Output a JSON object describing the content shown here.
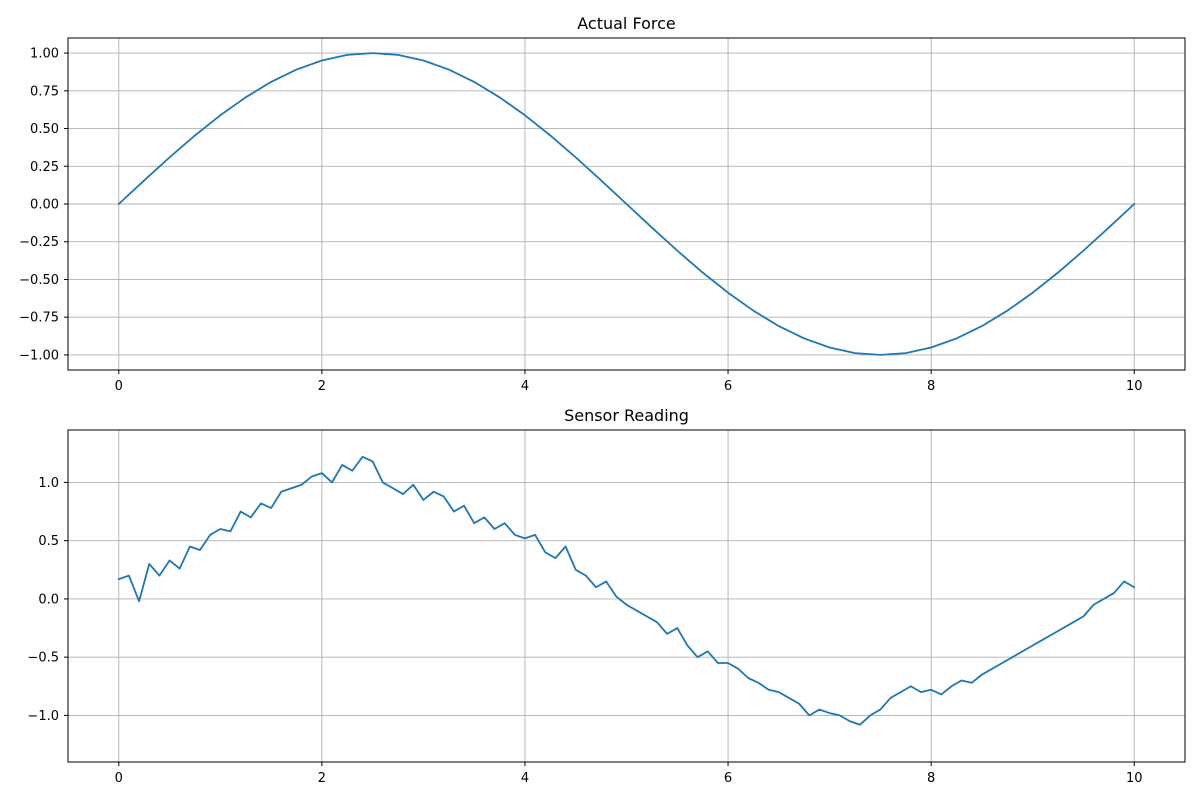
{
  "chart_data": [
    {
      "type": "line",
      "title": "Actual Force",
      "xlabel": "",
      "ylabel": "",
      "xlim": [
        -0.5,
        10.5
      ],
      "ylim": [
        -1.1,
        1.1
      ],
      "grid": true,
      "x_ticks": [
        0,
        2,
        4,
        6,
        8,
        10
      ],
      "x_tick_labels": [
        "0",
        "2",
        "4",
        "6",
        "8",
        "10"
      ],
      "y_ticks": [
        1.0,
        0.75,
        0.5,
        0.25,
        0.0,
        -0.25,
        -0.5,
        -0.75,
        -1.0
      ],
      "y_tick_labels": [
        "1.00",
        "0.75",
        "0.50",
        "0.25",
        "0.00",
        "−0.25",
        "−0.50",
        "−0.75",
        "−1.00"
      ],
      "color": "#1f77b4",
      "series": [
        {
          "x": [
            0,
            0.25,
            0.5,
            0.75,
            1,
            1.25,
            1.5,
            1.75,
            2,
            2.25,
            2.5,
            2.75,
            3,
            3.25,
            3.5,
            3.75,
            4,
            4.25,
            4.5,
            4.75,
            5,
            5.25,
            5.5,
            5.75,
            6,
            6.25,
            6.5,
            6.75,
            7,
            7.25,
            7.5,
            7.75,
            8,
            8.25,
            8.5,
            8.75,
            9,
            9.25,
            9.5,
            9.75,
            10
          ],
          "y": [
            0,
            0.156,
            0.309,
            0.454,
            0.588,
            0.707,
            0.809,
            0.891,
            0.951,
            0.988,
            1.0,
            0.988,
            0.951,
            0.891,
            0.809,
            0.707,
            0.588,
            0.454,
            0.309,
            0.156,
            0,
            -0.156,
            -0.309,
            -0.454,
            -0.588,
            -0.707,
            -0.809,
            -0.891,
            -0.951,
            -0.988,
            -1.0,
            -0.988,
            -0.951,
            -0.891,
            -0.809,
            -0.707,
            -0.588,
            -0.454,
            -0.309,
            -0.156,
            0
          ]
        }
      ]
    },
    {
      "type": "line",
      "title": "Sensor Reading",
      "xlabel": "",
      "ylabel": "",
      "xlim": [
        -0.5,
        10.5
      ],
      "ylim": [
        -1.4,
        1.45
      ],
      "grid": true,
      "x_ticks": [
        0,
        2,
        4,
        6,
        8,
        10
      ],
      "x_tick_labels": [
        "0",
        "2",
        "4",
        "6",
        "8",
        "10"
      ],
      "y_ticks": [
        1.0,
        0.5,
        0.0,
        -0.5,
        -1.0
      ],
      "y_tick_labels": [
        "1.0",
        "0.5",
        "0.0",
        "−0.5",
        "−1.0"
      ],
      "color": "#1f77b4",
      "series": [
        {
          "x": [
            0,
            0.1,
            0.2,
            0.3,
            0.4,
            0.5,
            0.6,
            0.7,
            0.8,
            0.9,
            1,
            1.1,
            1.2,
            1.3,
            1.4,
            1.5,
            1.6,
            1.7,
            1.8,
            1.9,
            2,
            2.1,
            2.2,
            2.3,
            2.4,
            2.5,
            2.6,
            2.7,
            2.8,
            2.9,
            3,
            3.1,
            3.2,
            3.3,
            3.4,
            3.5,
            3.6,
            3.7,
            3.8,
            3.9,
            4,
            4.1,
            4.2,
            4.3,
            4.4,
            4.5,
            4.6,
            4.7,
            4.8,
            4.9,
            5,
            5.1,
            5.2,
            5.3,
            5.4,
            5.5,
            5.6,
            5.7,
            5.8,
            5.9,
            6,
            6.1,
            6.2,
            6.3,
            6.4,
            6.5,
            6.6,
            6.7,
            6.8,
            6.9,
            7,
            7.1,
            7.2,
            7.3,
            7.4,
            7.5,
            7.6,
            7.7,
            7.8,
            7.9,
            8,
            8.1,
            8.2,
            8.3,
            8.4,
            8.5,
            8.6,
            8.7,
            8.8,
            8.9,
            9,
            9.1,
            9.2,
            9.3,
            9.4,
            9.5,
            9.6,
            9.7,
            9.8,
            9.9,
            10
          ],
          "y": [
            0.17,
            0.2,
            -0.02,
            0.3,
            0.2,
            0.33,
            0.26,
            0.45,
            0.42,
            0.55,
            0.6,
            0.58,
            0.75,
            0.7,
            0.82,
            0.78,
            0.92,
            0.95,
            0.98,
            1.05,
            1.08,
            1.0,
            1.15,
            1.1,
            1.22,
            1.18,
            1.0,
            0.95,
            0.9,
            0.98,
            0.85,
            0.92,
            0.88,
            0.75,
            0.8,
            0.65,
            0.7,
            0.6,
            0.65,
            0.55,
            0.52,
            0.55,
            0.4,
            0.35,
            0.45,
            0.25,
            0.2,
            0.1,
            0.15,
            0.02,
            -0.05,
            -0.1,
            -0.15,
            -0.2,
            -0.3,
            -0.25,
            -0.4,
            -0.5,
            -0.45,
            -0.55,
            -0.55,
            -0.6,
            -0.68,
            -0.72,
            -0.78,
            -0.8,
            -0.85,
            -0.9,
            -1.0,
            -0.95,
            -0.98,
            -1.0,
            -1.05,
            -1.08,
            -1.0,
            -0.95,
            -0.85,
            -0.8,
            -0.75,
            -0.8,
            -0.78,
            -0.82,
            -0.75,
            -0.7,
            -0.72,
            -0.65,
            -0.6,
            -0.55,
            -0.5,
            -0.45,
            -0.4,
            -0.35,
            -0.3,
            -0.25,
            -0.2,
            -0.15,
            -0.05,
            0.0,
            0.05,
            0.15,
            0.1
          ]
        }
      ]
    }
  ]
}
